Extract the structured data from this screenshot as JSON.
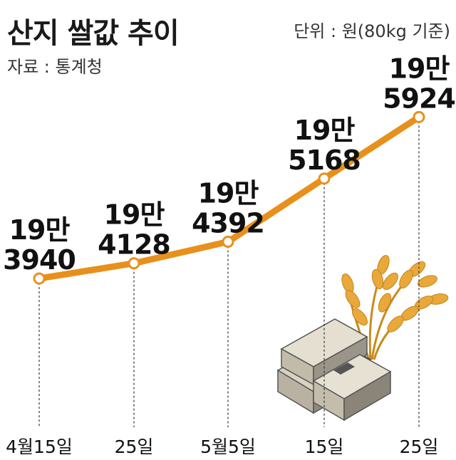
{
  "header": {
    "title": "산지 쌀값 추이",
    "source": "자료 : 통계청",
    "unit": "단위 : 원(80kg 기준)"
  },
  "chart_data": {
    "type": "line",
    "title": "산지 쌀값 추이",
    "unit": "원(80kg 기준)",
    "categories": [
      "4월15일",
      "25일",
      "5월5일",
      "15일",
      "25일"
    ],
    "values": [
      193940,
      194128,
      194392,
      195168,
      195924
    ],
    "data_labels": [
      [
        "19만",
        "3940"
      ],
      [
        "19만",
        "4128"
      ],
      [
        "19만",
        "4392"
      ],
      [
        "19만",
        "5168"
      ],
      [
        "19만",
        "5924"
      ]
    ],
    "ylim": [
      193600,
      196050
    ],
    "line_color": "#e8901c",
    "grid": false
  },
  "illustration": {
    "icons": [
      "rice-stalk-icon",
      "money-stack-icon"
    ]
  }
}
